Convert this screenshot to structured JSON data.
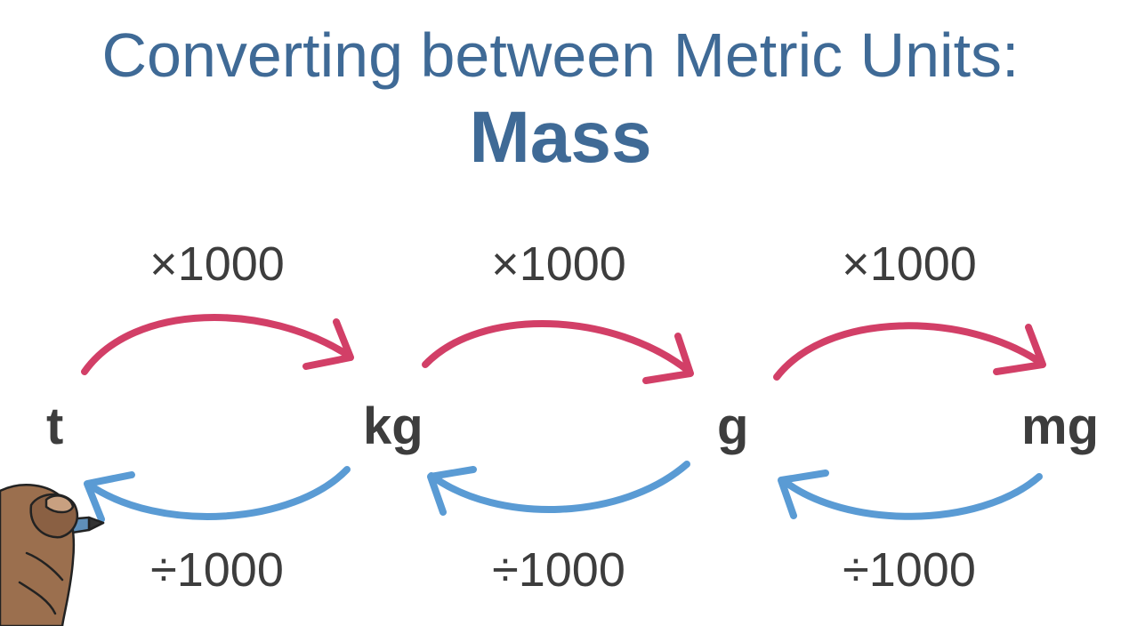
{
  "title": {
    "line1": "Converting between Metric Units:",
    "line2": "Mass"
  },
  "units": [
    "t",
    "kg",
    "g",
    "mg"
  ],
  "multiply_labels": [
    "×1000",
    "×1000",
    "×1000"
  ],
  "divide_labels": [
    "÷1000",
    "÷1000",
    "÷1000"
  ],
  "colors": {
    "title": "#3f6a96",
    "multiply_arrow": "#d23f67",
    "divide_arrow": "#5a9bd4",
    "text": "#3d3d3d"
  }
}
